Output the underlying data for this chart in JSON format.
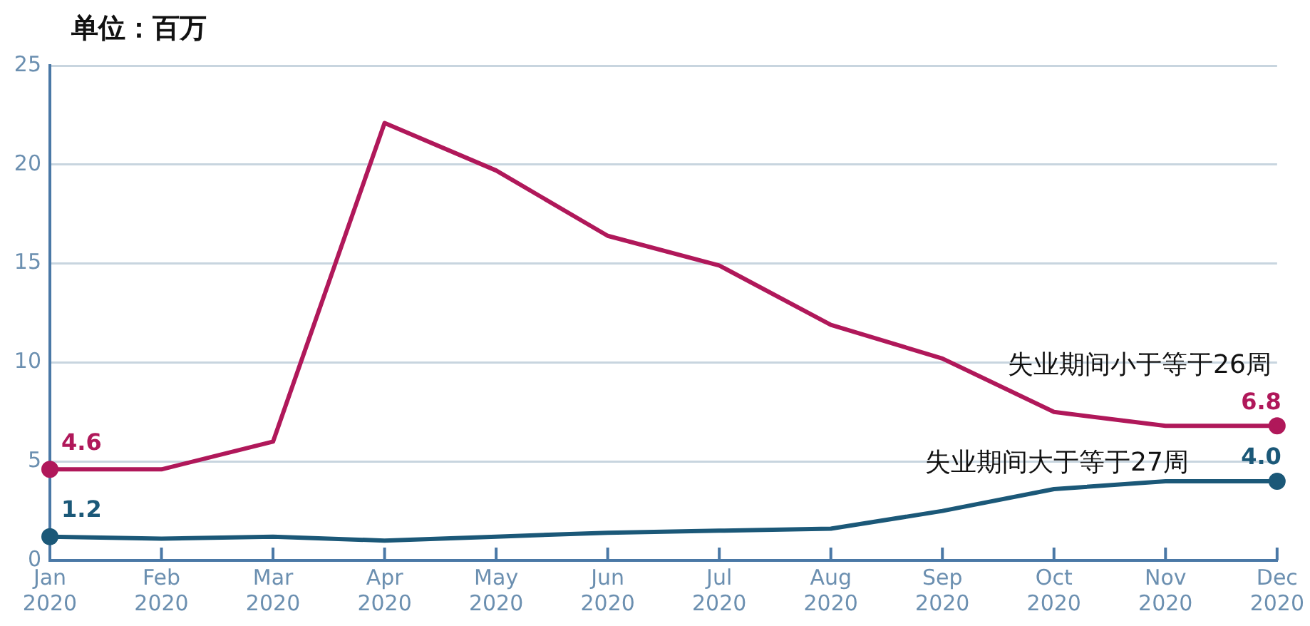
{
  "chart_data": {
    "type": "line",
    "ylabel": "单位：百万",
    "categories": [
      "Jan 2020",
      "Feb 2020",
      "Mar 2020",
      "Apr 2020",
      "May 2020",
      "Jun 2020",
      "Jul 2020",
      "Aug 2020",
      "Sep 2020",
      "Oct 2020",
      "Nov 2020",
      "Dec 2020"
    ],
    "series": [
      {
        "name": "失业期间小于等于26周",
        "color": "#b0185a",
        "values": [
          4.6,
          4.6,
          6.0,
          22.1,
          19.7,
          16.4,
          14.9,
          11.9,
          10.2,
          7.5,
          6.8,
          6.8
        ],
        "value_labels": [
          "4.6",
          null,
          null,
          null,
          null,
          null,
          null,
          null,
          null,
          null,
          null,
          "6.8"
        ]
      },
      {
        "name": "失业期间大于等于27周",
        "color": "#1b5878",
        "values": [
          1.2,
          1.1,
          1.2,
          1.0,
          1.2,
          1.4,
          1.5,
          1.6,
          2.5,
          3.6,
          4.0,
          4.0
        ],
        "value_labels": [
          "1.2",
          null,
          null,
          null,
          null,
          null,
          null,
          null,
          null,
          null,
          null,
          "4.0"
        ]
      }
    ],
    "ylim": [
      0,
      25
    ],
    "yticks": [
      0,
      5,
      10,
      15,
      20,
      25
    ],
    "grid": "y",
    "legend": false,
    "marker": "none",
    "line_style": "solid"
  }
}
